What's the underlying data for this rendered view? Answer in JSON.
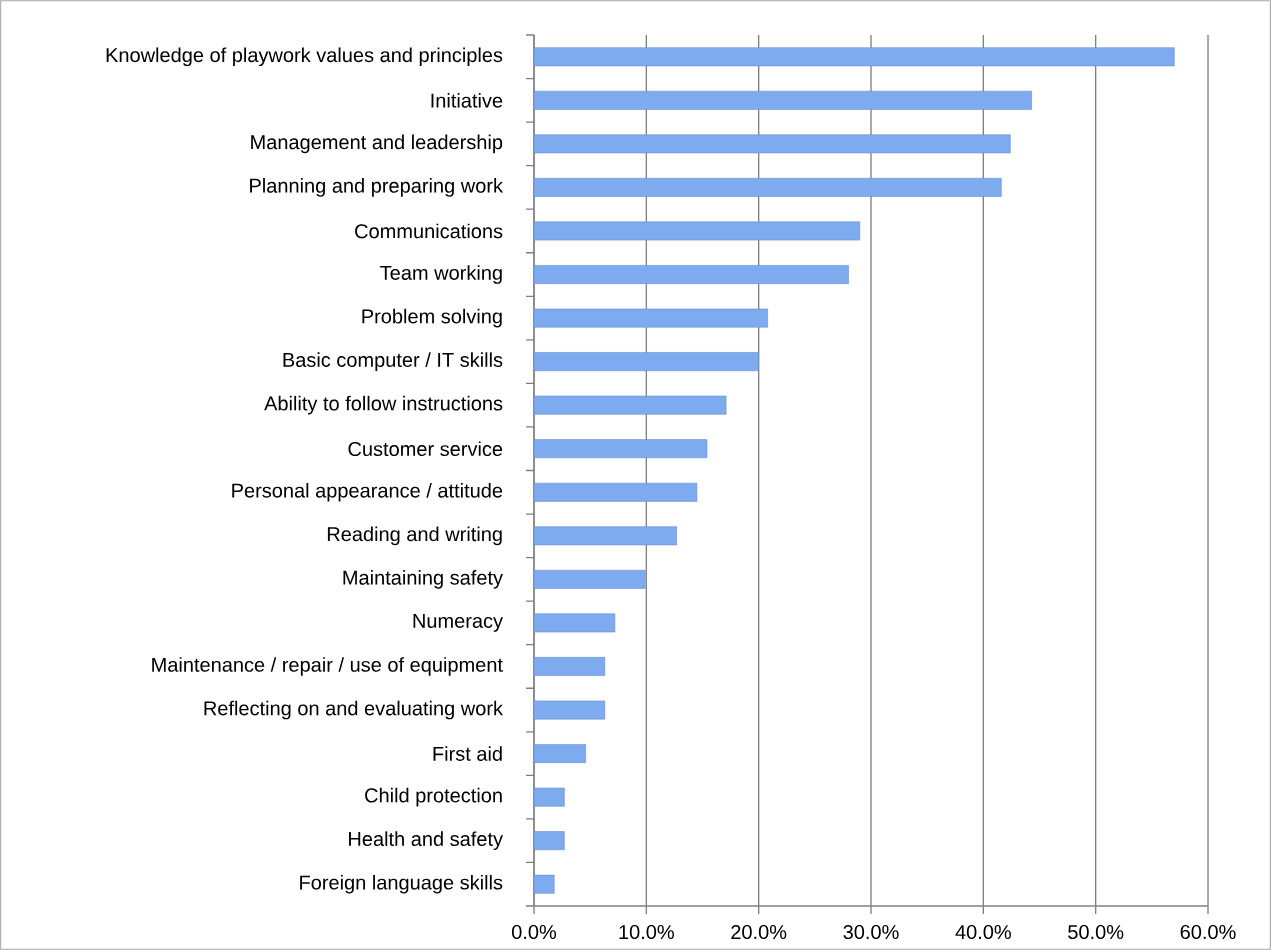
{
  "chart_data": {
    "type": "bar",
    "orientation": "horizontal",
    "categories": [
      "Knowledge of playwork values and principles",
      "Initiative",
      "Management and leadership",
      "Planning and preparing work",
      "Communications",
      "Team working",
      "Problem solving",
      "Basic computer / IT skills",
      "Ability to follow instructions",
      "Customer service",
      "Personal appearance / attitude",
      "Reading and writing",
      "Maintaining safety",
      "Numeracy",
      "Maintenance / repair / use of equipment",
      "Reflecting on and evaluating work",
      "First aid",
      "Child protection",
      "Health and safety",
      "Foreign language skills"
    ],
    "values": [
      57.0,
      44.3,
      42.4,
      41.6,
      29.0,
      28.0,
      20.8,
      20.0,
      17.1,
      15.4,
      14.5,
      12.7,
      9.9,
      7.2,
      6.3,
      6.3,
      4.6,
      2.7,
      2.7,
      1.8
    ],
    "color": "#7eaaf0",
    "xlim": [
      0,
      60
    ],
    "xticks": [
      {
        "value": 0,
        "label": "0.0%"
      },
      {
        "value": 10,
        "label": "10.0%"
      },
      {
        "value": 20,
        "label": "20.0%"
      },
      {
        "value": 30,
        "label": "30.0%"
      },
      {
        "value": 40,
        "label": "40.0%"
      },
      {
        "value": 50,
        "label": "50.0%"
      },
      {
        "value": 60,
        "label": "60.0%"
      }
    ],
    "grid": "x"
  }
}
